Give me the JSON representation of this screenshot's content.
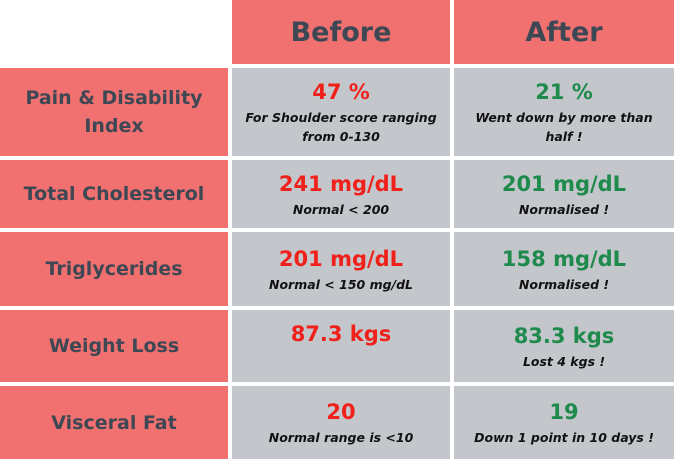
{
  "header": {
    "before": "Before",
    "after": "After"
  },
  "rows": [
    {
      "label": "Pain & Disability Index",
      "before": {
        "value": "47 %",
        "note": "For Shoulder score ranging from 0-130"
      },
      "after": {
        "value": "21 %",
        "note": "Went down by more than half !"
      }
    },
    {
      "label": "Total Cholesterol",
      "before": {
        "value": "241 mg/dL",
        "note": "Normal < 200"
      },
      "after": {
        "value": "201  mg/dL",
        "note": "Normalised !"
      }
    },
    {
      "label": "Triglycerides",
      "before": {
        "value": "201 mg/dL",
        "note": "Normal < 150 mg/dL"
      },
      "after": {
        "value": "158 mg/dL",
        "note": "Normalised !"
      }
    },
    {
      "label": "Weight Loss",
      "before": {
        "value": "87.3 kgs",
        "note": ""
      },
      "after": {
        "value": "83.3 kgs",
        "note": "Lost 4 kgs !"
      }
    },
    {
      "label": "Visceral Fat",
      "before": {
        "value": "20",
        "note": "Normal range is <10"
      },
      "after": {
        "value": "19",
        "note": "Down 1 point in 10 days !"
      }
    }
  ],
  "colors": {
    "header_bg": "#f07170",
    "value_bg": "#c3c6cb",
    "before_value": "#f0201a",
    "after_value": "#1e8a4c",
    "label_text": "#3e4754"
  }
}
